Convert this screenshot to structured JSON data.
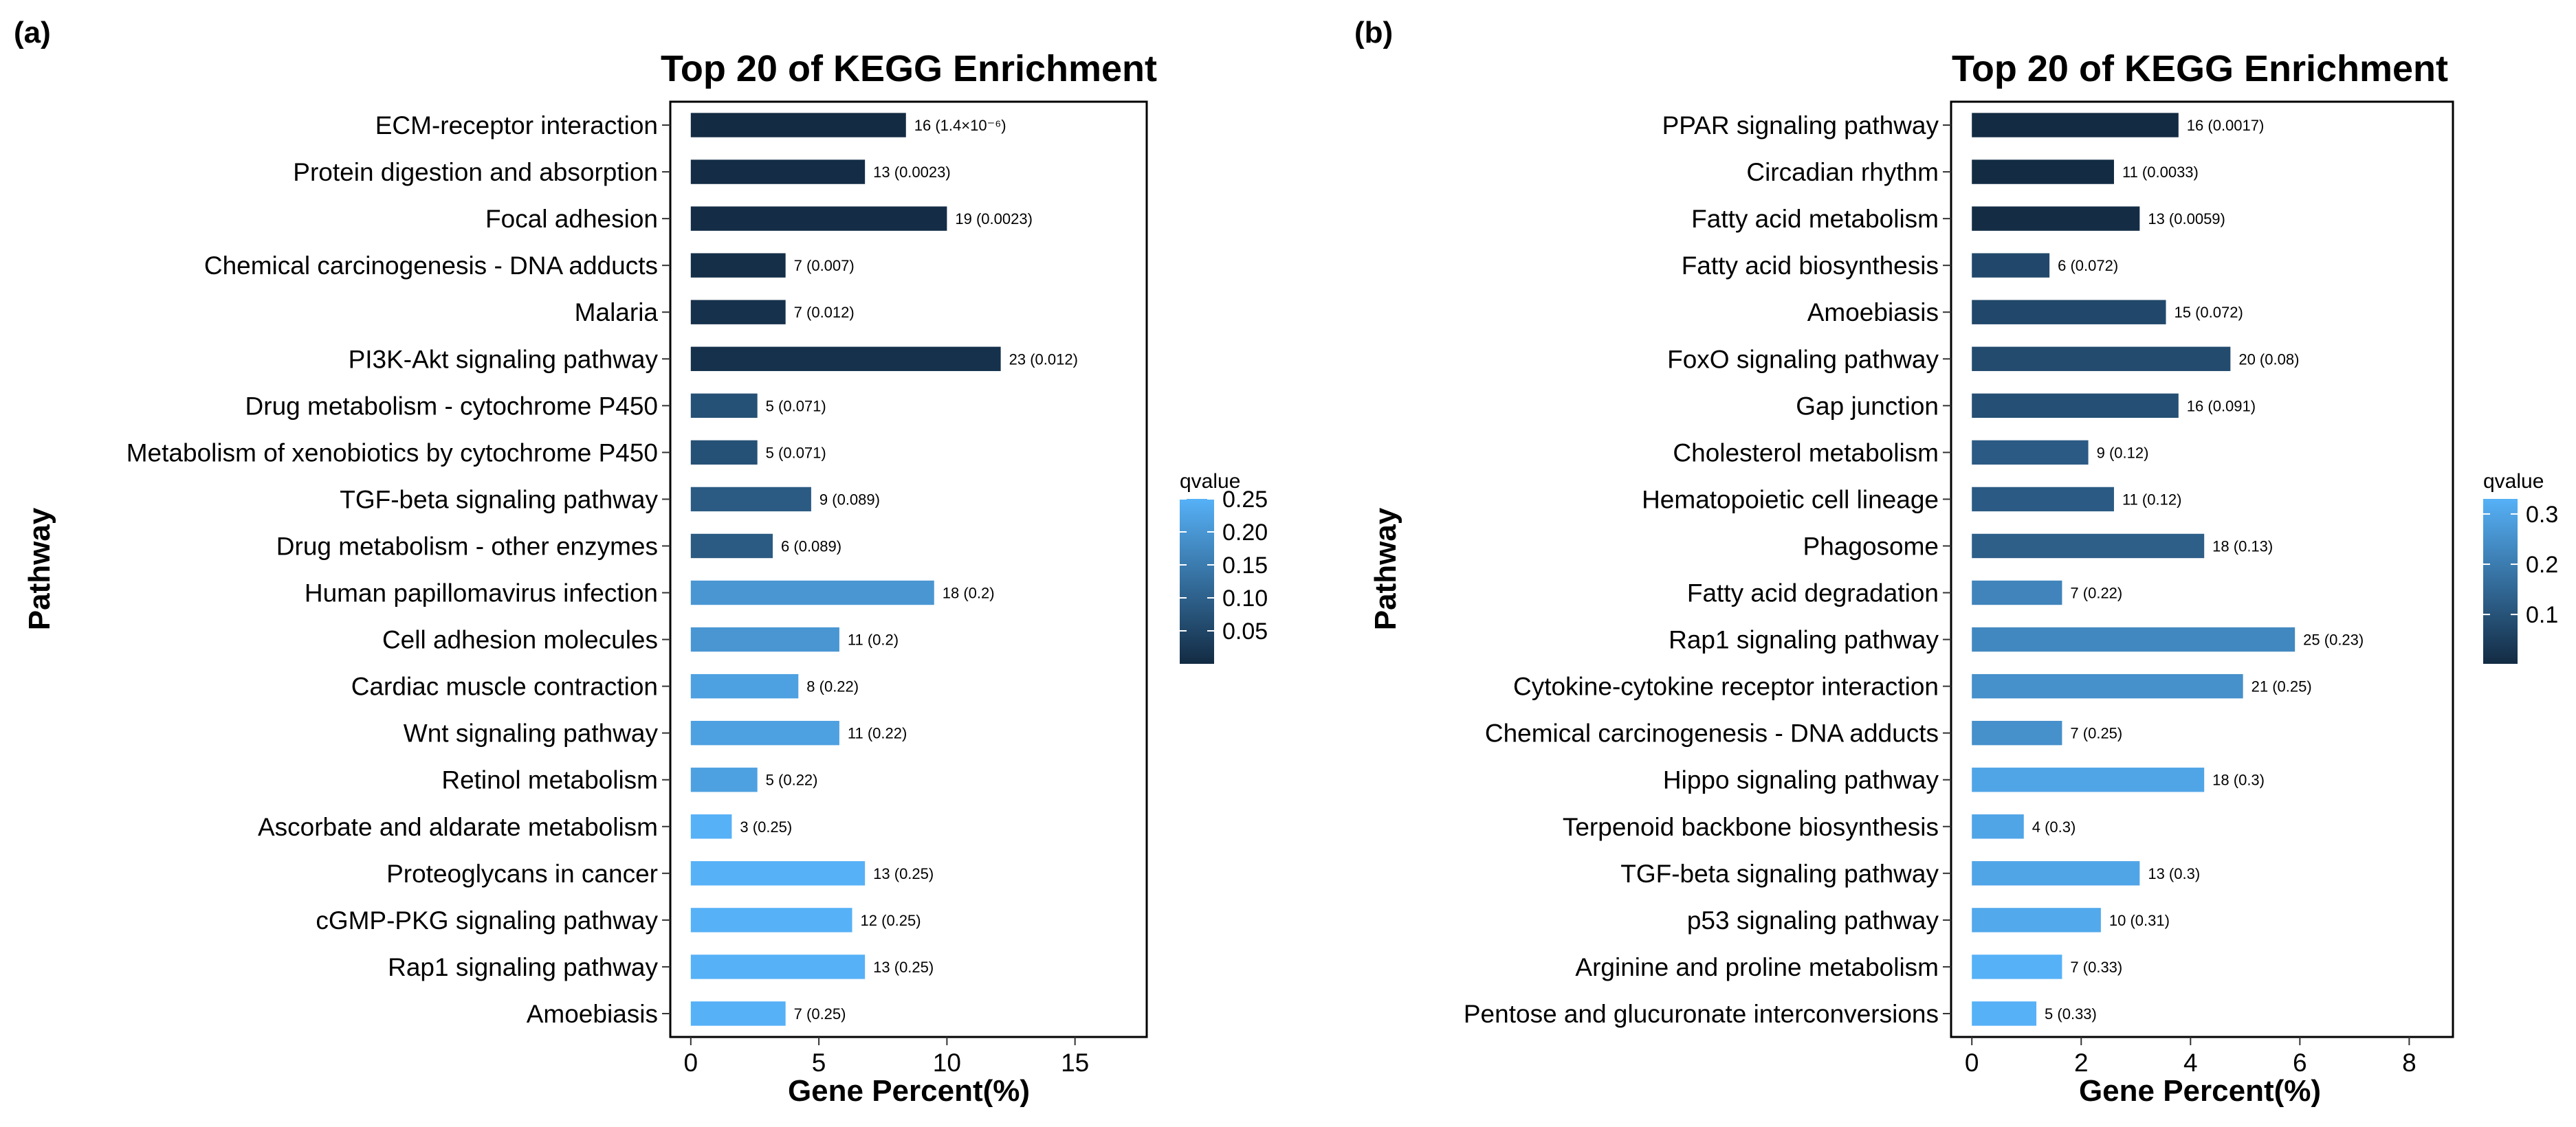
{
  "chart_data": [
    {
      "type": "bar",
      "orientation": "horizontal",
      "panel_label": "(a)",
      "title": "Top 20 of KEGG Enrichment",
      "xlabel": "Gene Percent(%)",
      "ylabel": "Pathway",
      "xlim": [
        -0.8,
        17.8
      ],
      "xticks": [
        "0",
        "5",
        "10",
        "15"
      ],
      "xtick_values": [
        0,
        5,
        10,
        15
      ],
      "color_scale": {
        "title": "qvalue",
        "low_color": "#132b43",
        "high_color": "#56b1f7",
        "min": 1.4e-06,
        "max": 0.25,
        "ticks": [
          "0.05",
          "0.10",
          "0.15",
          "0.20",
          "0.25"
        ],
        "tick_values": [
          0.05,
          0.1,
          0.15,
          0.2,
          0.25
        ]
      },
      "categories": [
        "ECM-receptor interaction",
        "Protein digestion and absorption",
        "Focal adhesion",
        "Chemical carcinogenesis - DNA adducts",
        "Malaria",
        "PI3K-Akt signaling pathway",
        "Drug metabolism - cytochrome P450",
        "Metabolism of xenobiotics by cytochrome P450",
        "TGF-beta signaling pathway",
        "Drug metabolism - other enzymes",
        "Human papillomavirus infection",
        "Cell adhesion molecules",
        "Cardiac muscle contraction",
        "Wnt signaling pathway",
        "Retinol metabolism",
        "Ascorbate and aldarate metabolism",
        "Proteoglycans in cancer",
        "cGMP-PKG signaling pathway",
        "Rap1 signaling pathway",
        "Amoebiasis"
      ],
      "values": [
        8.4,
        6.8,
        10.0,
        3.7,
        3.7,
        12.1,
        2.6,
        2.6,
        4.7,
        3.2,
        9.5,
        5.8,
        4.2,
        5.8,
        2.6,
        1.6,
        6.8,
        6.3,
        6.8,
        3.7
      ],
      "qvalues": [
        1.4e-06,
        0.0023,
        0.0023,
        0.007,
        0.012,
        0.012,
        0.071,
        0.071,
        0.089,
        0.089,
        0.2,
        0.2,
        0.22,
        0.22,
        0.22,
        0.25,
        0.25,
        0.25,
        0.25,
        0.25
      ],
      "labels": [
        "16 (1.4×10⁻⁶)",
        "13 (0.0023)",
        "19 (0.0023)",
        "7 (0.007)",
        "7 (0.012)",
        "23 (0.012)",
        "5 (0.071)",
        "5 (0.071)",
        "9 (0.089)",
        "6 (0.089)",
        "18 (0.2)",
        "11 (0.2)",
        "8 (0.22)",
        "11 (0.22)",
        "5 (0.22)",
        "3 (0.25)",
        "13 (0.25)",
        "12 (0.25)",
        "13 (0.25)",
        "7 (0.25)"
      ]
    },
    {
      "type": "bar",
      "orientation": "horizontal",
      "panel_label": "(b)",
      "title": "Top 20 of KEGG Enrichment",
      "xlabel": "Gene Percent(%)",
      "ylabel": "Pathway",
      "xlim": [
        -0.38,
        8.8
      ],
      "xticks": [
        "0",
        "2",
        "4",
        "6",
        "8"
      ],
      "xtick_values": [
        0,
        2,
        4,
        6,
        8
      ],
      "color_scale": {
        "title": "qvalue",
        "low_color": "#132b43",
        "high_color": "#56b1f7",
        "min": 0.0017,
        "max": 0.33,
        "ticks": [
          "0.1",
          "0.2",
          "0.3"
        ],
        "tick_values": [
          0.1,
          0.2,
          0.3
        ]
      },
      "categories": [
        "PPAR signaling pathway",
        "Circadian rhythm",
        "Fatty acid metabolism",
        "Fatty acid biosynthesis",
        "Amoebiasis",
        "FoxO signaling pathway",
        "Gap junction",
        "Cholesterol metabolism",
        "Hematopoietic cell lineage",
        "Phagosome",
        "Fatty acid degradation",
        "Rap1 signaling pathway",
        "Cytokine-cytokine receptor interaction",
        "Chemical carcinogenesis - DNA adducts",
        "Hippo signaling pathway",
        "Terpenoid backbone biosynthesis",
        "TGF-beta signaling pathway",
        "p53 signaling pathway",
        "Arginine and proline metabolism",
        "Pentose and glucuronate interconversions"
      ],
      "values": [
        3.78,
        2.6,
        3.07,
        1.42,
        3.55,
        4.73,
        3.78,
        2.13,
        2.6,
        4.25,
        1.65,
        5.91,
        4.96,
        1.65,
        4.25,
        0.95,
        3.07,
        2.36,
        1.65,
        1.18
      ],
      "qvalues": [
        0.0017,
        0.0033,
        0.0059,
        0.072,
        0.072,
        0.08,
        0.091,
        0.12,
        0.12,
        0.13,
        0.22,
        0.23,
        0.25,
        0.25,
        0.3,
        0.3,
        0.3,
        0.31,
        0.33,
        0.33
      ],
      "labels": [
        "16 (0.0017)",
        "11 (0.0033)",
        "13 (0.0059)",
        "6 (0.072)",
        "15 (0.072)",
        "20 (0.08)",
        "16 (0.091)",
        "9 (0.12)",
        "11 (0.12)",
        "18 (0.13)",
        "7 (0.22)",
        "25 (0.23)",
        "21 (0.25)",
        "7 (0.25)",
        "18 (0.3)",
        "4 (0.3)",
        "13 (0.3)",
        "10 (0.31)",
        "7 (0.33)",
        "5 (0.33)"
      ]
    }
  ]
}
